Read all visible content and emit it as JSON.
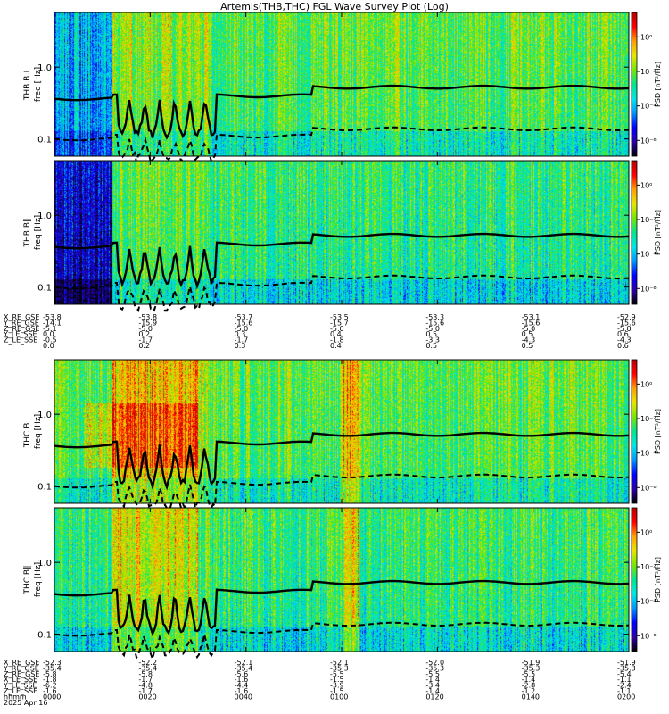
{
  "title": "Artemis(THB,THC) FGL Wave Survey Plot (Log)",
  "colors": {
    "colormap": [
      "#000000",
      "#2c00a8",
      "#0000ff",
      "#0096ff",
      "#00e6e6",
      "#00e68c",
      "#78e600",
      "#e6e600",
      "#ffa000",
      "#ff0000",
      "#b40000"
    ]
  },
  "chart_data": [
    {
      "type": "heatmap",
      "probe": "THB",
      "panel_label": "THB B⊥",
      "ylabel": "freq [Hz]",
      "yscale": "log",
      "yticks": [
        "1.0",
        "0.1"
      ],
      "colorbar_label": "PSD [nT²/Hz]",
      "colorbar_ticks": [
        "10⁰",
        "10⁻²",
        "10⁻⁴",
        "10⁻⁶"
      ],
      "lines": [
        "solid: ion cyclotron frequency",
        "dashed"
      ],
      "time_range": [
        "0000",
        "0200"
      ]
    },
    {
      "type": "heatmap",
      "probe": "THB",
      "panel_label": "THB B‖",
      "ylabel": "freq [Hz]",
      "yscale": "log",
      "yticks": [
        "1.0",
        "0.1"
      ],
      "colorbar_label": "PSD [nT²/Hz]",
      "colorbar_ticks": [
        "10⁰",
        "10⁻²",
        "10⁻⁴",
        "10⁻⁶"
      ],
      "time_range": [
        "0000",
        "0200"
      ]
    },
    {
      "type": "heatmap",
      "probe": "THC",
      "panel_label": "THC B⊥",
      "ylabel": "freq [Hz]",
      "yscale": "log",
      "yticks": [
        "1.0",
        "0.1"
      ],
      "colorbar_label": "PSD [nT²/Hz]",
      "colorbar_ticks": [
        "10⁰",
        "10⁻²",
        "10⁻⁴",
        "10⁻⁶"
      ],
      "time_range": [
        "0000",
        "0200"
      ]
    },
    {
      "type": "heatmap",
      "probe": "THC",
      "panel_label": "THC B‖",
      "ylabel": "freq [Hz]",
      "yscale": "log",
      "yticks": [
        "1.0",
        "0.1"
      ],
      "colorbar_label": "PSD [nT²/Hz]",
      "colorbar_ticks": [
        "10⁰",
        "10⁻²",
        "10⁻⁴",
        "10⁻⁶"
      ],
      "time_range": [
        "0000",
        "0200"
      ]
    }
  ],
  "ephemeris": {
    "thb": {
      "labels": [
        "X_RE_GSE",
        "Y_RE_GSE",
        "Z_RE_GSE",
        "Y_LE_SSE",
        "Z_LE_SSE"
      ],
      "rows": [
        [
          "-53.8",
          "-53.8",
          "-53.7",
          "-53.5",
          "-53.3",
          "-53.1",
          "-52.9"
        ],
        [
          "-14.1",
          "-15.9",
          "-15.6",
          "-15.7",
          "-15.6",
          "-15.6",
          "-15.6"
        ],
        [
          "-5.1",
          "-5.0",
          "-5.0",
          "-5.0",
          "-5.0",
          "-5.0",
          "-5.0"
        ],
        [
          "0.0",
          "0.2",
          "0.3",
          "0.4",
          "0.5",
          "0.5",
          "0.6"
        ],
        [
          "-0.5",
          "-1.7",
          "-1.7",
          "-1.8",
          "-3.3",
          "-4.3",
          "-4.3"
        ]
      ],
      "extra_row": [
        "0.0",
        "0.2",
        "0.3",
        "0.4",
        "0.5",
        "0.5",
        "0.6"
      ]
    },
    "thc": {
      "labels": [
        "X_RE_GSE",
        "Y_RE_GSE",
        "Z_RE_GSE",
        "X_LE_SSE",
        "Y_LE_SSE",
        "Z_LE_SSE",
        "hhmm",
        "2025 Apr 16"
      ],
      "rows": [
        [
          "-52.3",
          "-52.2",
          "-52.1",
          "-52.1",
          "-52.0",
          "-51.9",
          "-51.9"
        ],
        [
          "-35.4",
          "-35.4",
          "-35.4",
          "-35.3",
          "-35.3",
          "-35.3",
          "-35.3"
        ],
        [
          "-5.8",
          "-5.8",
          "-5.6",
          "-5.5",
          "-5.5",
          "-5.5",
          "-5.4"
        ],
        [
          "-1.8",
          "-1.7",
          "-1.6",
          "-1.5",
          "-1.4",
          "-1.4",
          "-1.1"
        ],
        [
          "-6.2",
          "-4.8",
          "-4.4",
          "-3.9",
          "-3.4",
          "-2.8",
          "-2.4"
        ],
        [
          "-1.6",
          "-1.7",
          "-1.6",
          "-1.5",
          "-1.4",
          "-1.2",
          "-1.1"
        ],
        [
          "0000",
          "0020",
          "0040",
          "0100",
          "0120",
          "0140",
          "0200"
        ]
      ]
    }
  }
}
